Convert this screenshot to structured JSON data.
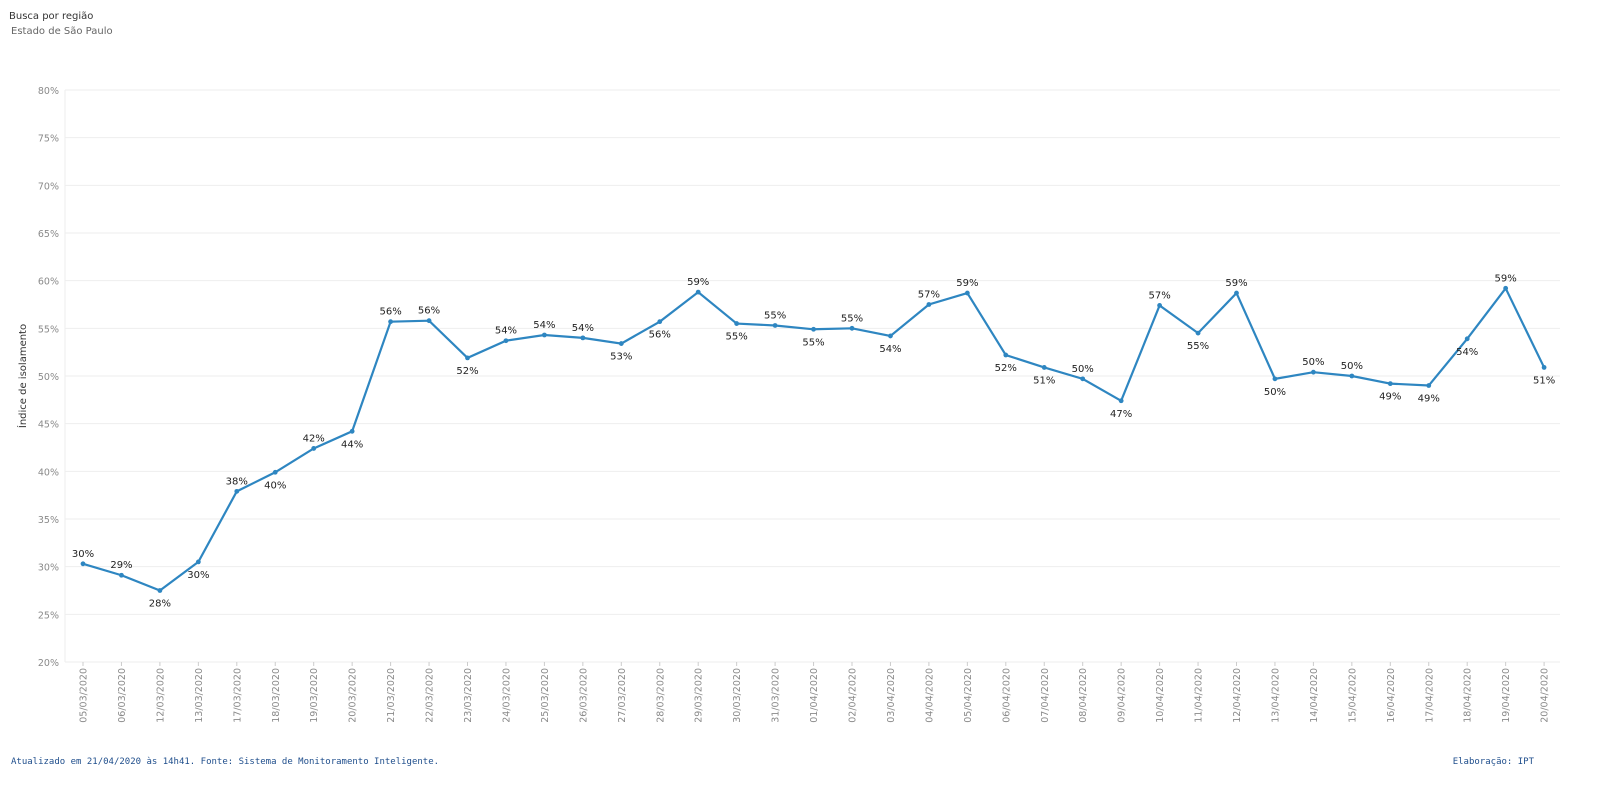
{
  "header": {
    "title": "Busca por região",
    "subtitle": "Estado de São Paulo"
  },
  "footer": {
    "left": "Atualizado em 21/04/2020 às 14h41. Fonte: Sistema de Monitoramento Inteligente.",
    "right": "Elaboração: IPT"
  },
  "colors": {
    "line": "#2e86c1",
    "grid": "#eeeeee",
    "tick_text": "#8a8a8a",
    "label_text": "#222222"
  },
  "chart_data": {
    "type": "line",
    "title": "",
    "xlabel": "",
    "ylabel": "Índice de isolamento",
    "ylim": [
      20,
      80
    ],
    "yticks": [
      20,
      25,
      30,
      35,
      40,
      45,
      50,
      55,
      60,
      65,
      70,
      75,
      80
    ],
    "ytick_labels": [
      "20%",
      "25%",
      "30%",
      "35%",
      "40%",
      "45%",
      "50%",
      "55%",
      "60%",
      "65%",
      "70%",
      "75%",
      "80%"
    ],
    "grid": true,
    "x": [
      "05/03/2020",
      "06/03/2020",
      "12/03/2020",
      "13/03/2020",
      "17/03/2020",
      "18/03/2020",
      "19/03/2020",
      "20/03/2020",
      "21/03/2020",
      "22/03/2020",
      "23/03/2020",
      "24/03/2020",
      "25/03/2020",
      "26/03/2020",
      "27/03/2020",
      "28/03/2020",
      "29/03/2020",
      "30/03/2020",
      "31/03/2020",
      "01/04/2020",
      "02/04/2020",
      "03/04/2020",
      "04/04/2020",
      "05/04/2020",
      "06/04/2020",
      "07/04/2020",
      "08/04/2020",
      "09/04/2020",
      "10/04/2020",
      "11/04/2020",
      "12/04/2020",
      "13/04/2020",
      "14/04/2020",
      "15/04/2020",
      "16/04/2020",
      "17/04/2020",
      "18/04/2020",
      "19/04/2020",
      "20/04/2020"
    ],
    "values": [
      30.3,
      29.1,
      27.5,
      30.5,
      37.9,
      39.9,
      42.4,
      44.2,
      55.7,
      55.8,
      51.9,
      53.7,
      54.3,
      54.0,
      53.4,
      55.7,
      58.8,
      55.5,
      55.3,
      54.9,
      55.0,
      54.2,
      57.5,
      58.7,
      52.2,
      50.9,
      49.7,
      47.4,
      57.4,
      54.5,
      58.7,
      49.7,
      50.4,
      50.0,
      49.2,
      49.0,
      53.9,
      59.2,
      50.9
    ],
    "data_labels": [
      "30%",
      "29%",
      "28%",
      "30%",
      "38%",
      "40%",
      "42%",
      "44%",
      "56%",
      "56%",
      "52%",
      "54%",
      "54%",
      "54%",
      "53%",
      "56%",
      "59%",
      "55%",
      "55%",
      "55%",
      "55%",
      "54%",
      "57%",
      "59%",
      "52%",
      "51%",
      "50%",
      "47%",
      "57%",
      "55%",
      "59%",
      "50%",
      "50%",
      "50%",
      "49%",
      "49%",
      "54%",
      "59%",
      "51%"
    ],
    "label_positions": [
      "above",
      "above",
      "below",
      "below",
      "above",
      "below",
      "above",
      "below",
      "above",
      "above",
      "below",
      "above",
      "above",
      "above",
      "below",
      "below",
      "above",
      "below",
      "above",
      "below",
      "above",
      "below",
      "above",
      "above",
      "below",
      "below",
      "above",
      "below",
      "above",
      "below",
      "above",
      "below",
      "above",
      "above",
      "below",
      "below",
      "below",
      "above",
      "below"
    ]
  }
}
